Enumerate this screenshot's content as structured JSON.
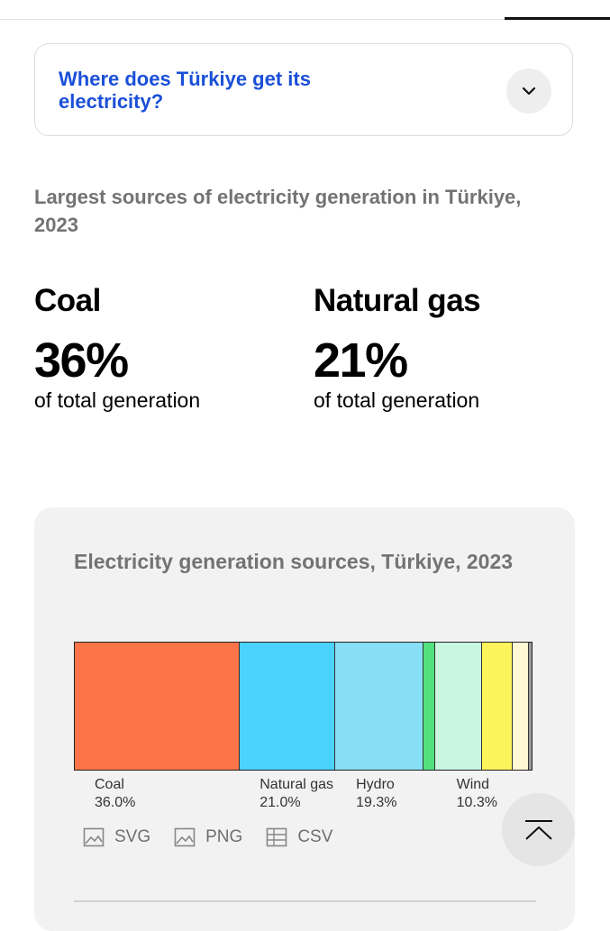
{
  "faq": {
    "question": "Where does Türkiye get its electricity?"
  },
  "sources_heading": "Largest sources of electricity generation in Türkiye, 2023",
  "stats": [
    {
      "name": "Coal",
      "value": "36%",
      "caption": "of total generation"
    },
    {
      "name": "Natural gas",
      "value": "21%",
      "caption": "of total generation"
    }
  ],
  "chart_card": {
    "title": "Electricity generation sources, Türkiye, 2023",
    "downloads": {
      "svg": "SVG",
      "png": "PNG",
      "csv": "CSV"
    }
  },
  "chart_data": {
    "type": "bar",
    "stacked": true,
    "orientation": "horizontal",
    "title": "Electricity generation sources, Türkiye, 2023",
    "unit": "%",
    "segments": [
      {
        "label": "Coal",
        "value": 36.0,
        "value_label": "36.0%",
        "color": "#fd7449"
      },
      {
        "label": "Natural gas",
        "value": 21.0,
        "value_label": "21.0%",
        "color": "#4bd2fd"
      },
      {
        "label": "Hydro",
        "value": 19.3,
        "value_label": "19.3%",
        "color": "#87dff6"
      },
      {
        "label": "",
        "value": 2.6,
        "value_label": "",
        "color": "#53e07e"
      },
      {
        "label": "Wind",
        "value": 10.3,
        "value_label": "10.3%",
        "color": "#c8f6e0"
      },
      {
        "label": "",
        "value": 6.6,
        "value_label": "",
        "color": "#fcf45a"
      },
      {
        "label": "",
        "value": 3.6,
        "value_label": "",
        "color": "#fff8d4"
      },
      {
        "label": "",
        "value": 0.6,
        "value_label": "",
        "color": "#9a9a9a"
      }
    ]
  },
  "colors": {
    "link": "#1a4fd8",
    "muted": "#737373",
    "card_bg": "#f2f2f2"
  }
}
